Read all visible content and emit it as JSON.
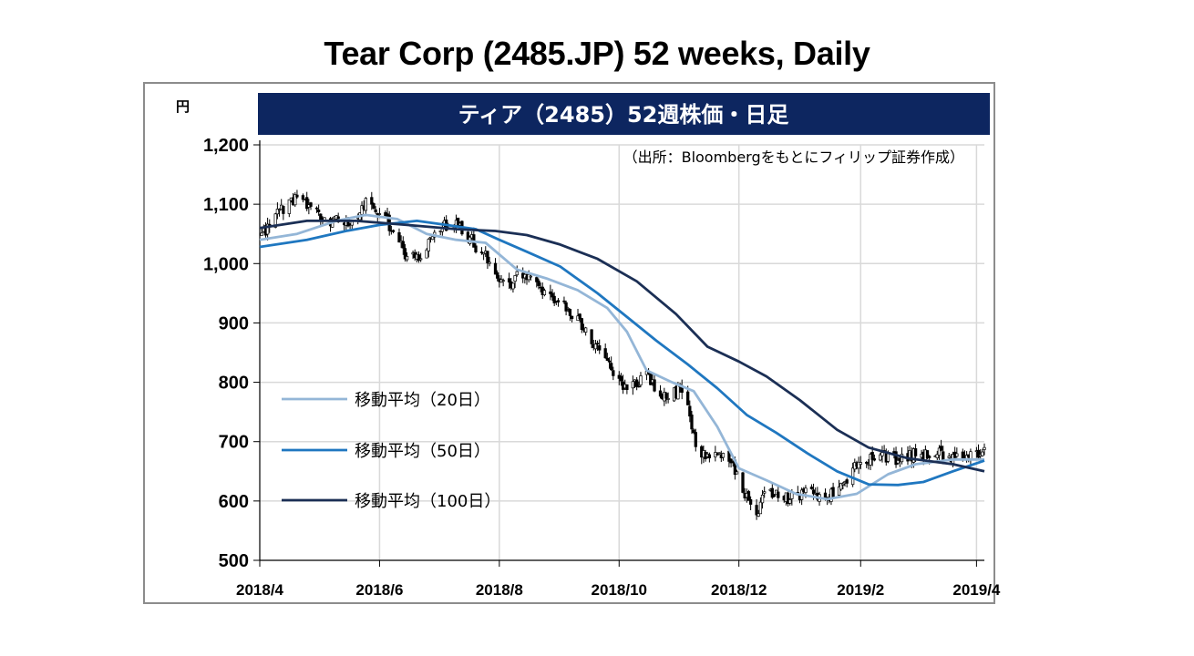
{
  "slide": {
    "title": "Tear Corp (2485.JP) 52 weeks, Daily"
  },
  "chart_data": {
    "type": "candlestick",
    "title": "ティア（2485）52週株価・日足",
    "subtitle": "（出所：Bloombergをもとにフィリップ証券作成）",
    "ylabel": "円",
    "xlabel": "",
    "ylim": [
      500,
      1200
    ],
    "yticks": [
      500,
      600,
      700,
      800,
      900,
      1000,
      1100,
      1200
    ],
    "ytick_labels": [
      "500",
      "600",
      "700",
      "800",
      "900",
      "1,000",
      "1,100",
      "1,200"
    ],
    "xtick_labels": [
      "2018/4",
      "2018/6",
      "2018/8",
      "2018/10",
      "2018/12",
      "2019/2",
      "2019/4"
    ],
    "xtick_dates": [
      "2018-04-01",
      "2018-06-01",
      "2018-08-01",
      "2018-10-01",
      "2018-12-01",
      "2019-02-01",
      "2019-04-01"
    ],
    "date_range": [
      "2018-04-01",
      "2019-04-05"
    ],
    "grid": true,
    "legend_position": "left-bottom",
    "colors": {
      "banner": "#0d2660",
      "candle": "#000000",
      "grid": "#d9d9d9",
      "ma20": "#94b6d7",
      "ma50": "#1f77c0",
      "ma100": "#1b2f55"
    },
    "price_path": [
      [
        "2018-04-02",
        1050
      ],
      [
        "2018-04-12",
        1090
      ],
      [
        "2018-04-20",
        1110
      ],
      [
        "2018-05-01",
        1080
      ],
      [
        "2018-05-15",
        1065
      ],
      [
        "2018-05-25",
        1100
      ],
      [
        "2018-06-05",
        1070
      ],
      [
        "2018-06-10",
        1050
      ],
      [
        "2018-06-15",
        1010
      ],
      [
        "2018-06-22",
        1015
      ],
      [
        "2018-06-30",
        1060
      ],
      [
        "2018-07-08",
        1070
      ],
      [
        "2018-07-15",
        1050
      ],
      [
        "2018-07-20",
        1030
      ],
      [
        "2018-07-28",
        1000
      ],
      [
        "2018-08-05",
        960
      ],
      [
        "2018-08-10",
        980
      ],
      [
        "2018-08-20",
        965
      ],
      [
        "2018-08-30",
        940
      ],
      [
        "2018-09-10",
        905
      ],
      [
        "2018-09-20",
        860
      ],
      [
        "2018-09-28",
        820
      ],
      [
        "2018-10-05",
        790
      ],
      [
        "2018-10-15",
        810
      ],
      [
        "2018-10-25",
        775
      ],
      [
        "2018-11-03",
        790
      ],
      [
        "2018-11-10",
        680
      ],
      [
        "2018-11-20",
        680
      ],
      [
        "2018-11-28",
        660
      ],
      [
        "2018-12-05",
        605
      ],
      [
        "2018-12-10",
        580
      ],
      [
        "2018-12-15",
        620
      ],
      [
        "2018-12-25",
        605
      ],
      [
        "2019-01-05",
        615
      ],
      [
        "2019-01-15",
        608
      ],
      [
        "2019-01-25",
        640
      ],
      [
        "2019-02-01",
        665
      ],
      [
        "2019-02-10",
        675
      ],
      [
        "2019-02-20",
        672
      ],
      [
        "2019-03-01",
        678
      ],
      [
        "2019-03-10",
        680
      ],
      [
        "2019-03-20",
        675
      ],
      [
        "2019-04-05",
        682
      ]
    ],
    "series": [
      {
        "name": "移動平均（20日）",
        "points": [
          [
            "2018-04-01",
            1040
          ],
          [
            "2018-04-20",
            1050
          ],
          [
            "2018-05-10",
            1072
          ],
          [
            "2018-05-25",
            1082
          ],
          [
            "2018-06-10",
            1075
          ],
          [
            "2018-06-25",
            1050
          ],
          [
            "2018-07-10",
            1040
          ],
          [
            "2018-07-25",
            1035
          ],
          [
            "2018-08-10",
            990
          ],
          [
            "2018-08-25",
            975
          ],
          [
            "2018-09-10",
            955
          ],
          [
            "2018-09-25",
            925
          ],
          [
            "2018-10-05",
            885
          ],
          [
            "2018-10-15",
            820
          ],
          [
            "2018-10-28",
            800
          ],
          [
            "2018-11-08",
            785
          ],
          [
            "2018-11-20",
            725
          ],
          [
            "2018-12-01",
            655
          ],
          [
            "2018-12-15",
            635
          ],
          [
            "2018-12-30",
            612
          ],
          [
            "2019-01-15",
            603
          ],
          [
            "2019-01-30",
            612
          ],
          [
            "2019-02-15",
            645
          ],
          [
            "2019-03-01",
            662
          ],
          [
            "2019-03-20",
            670
          ],
          [
            "2019-04-05",
            670
          ]
        ]
      },
      {
        "name": "移動平均（50日）",
        "points": [
          [
            "2018-04-01",
            1028
          ],
          [
            "2018-04-25",
            1040
          ],
          [
            "2018-05-15",
            1055
          ],
          [
            "2018-06-01",
            1065
          ],
          [
            "2018-06-20",
            1072
          ],
          [
            "2018-07-05",
            1065
          ],
          [
            "2018-07-20",
            1058
          ],
          [
            "2018-08-01",
            1040
          ],
          [
            "2018-08-15",
            1020
          ],
          [
            "2018-09-01",
            995
          ],
          [
            "2018-09-20",
            950
          ],
          [
            "2018-10-05",
            910
          ],
          [
            "2018-10-20",
            870
          ],
          [
            "2018-11-05",
            830
          ],
          [
            "2018-11-20",
            790
          ],
          [
            "2018-12-05",
            745
          ],
          [
            "2018-12-20",
            715
          ],
          [
            "2019-01-05",
            680
          ],
          [
            "2019-01-20",
            650
          ],
          [
            "2019-02-05",
            628
          ],
          [
            "2019-02-20",
            627
          ],
          [
            "2019-03-05",
            632
          ],
          [
            "2019-03-20",
            650
          ],
          [
            "2019-04-05",
            668
          ]
        ]
      },
      {
        "name": "移動平均（100日）",
        "points": [
          [
            "2018-04-01",
            1060
          ],
          [
            "2018-04-25",
            1072
          ],
          [
            "2018-05-20",
            1072
          ],
          [
            "2018-06-15",
            1065
          ],
          [
            "2018-07-10",
            1058
          ],
          [
            "2018-07-30",
            1055
          ],
          [
            "2018-08-15",
            1048
          ],
          [
            "2018-09-01",
            1032
          ],
          [
            "2018-09-20",
            1008
          ],
          [
            "2018-10-10",
            970
          ],
          [
            "2018-10-30",
            915
          ],
          [
            "2018-11-15",
            860
          ],
          [
            "2018-12-01",
            835
          ],
          [
            "2018-12-15",
            810
          ],
          [
            "2019-01-01",
            770
          ],
          [
            "2019-01-20",
            720
          ],
          [
            "2019-02-05",
            690
          ],
          [
            "2019-02-25",
            672
          ],
          [
            "2019-03-20",
            662
          ],
          [
            "2019-04-05",
            650
          ]
        ]
      }
    ]
  }
}
